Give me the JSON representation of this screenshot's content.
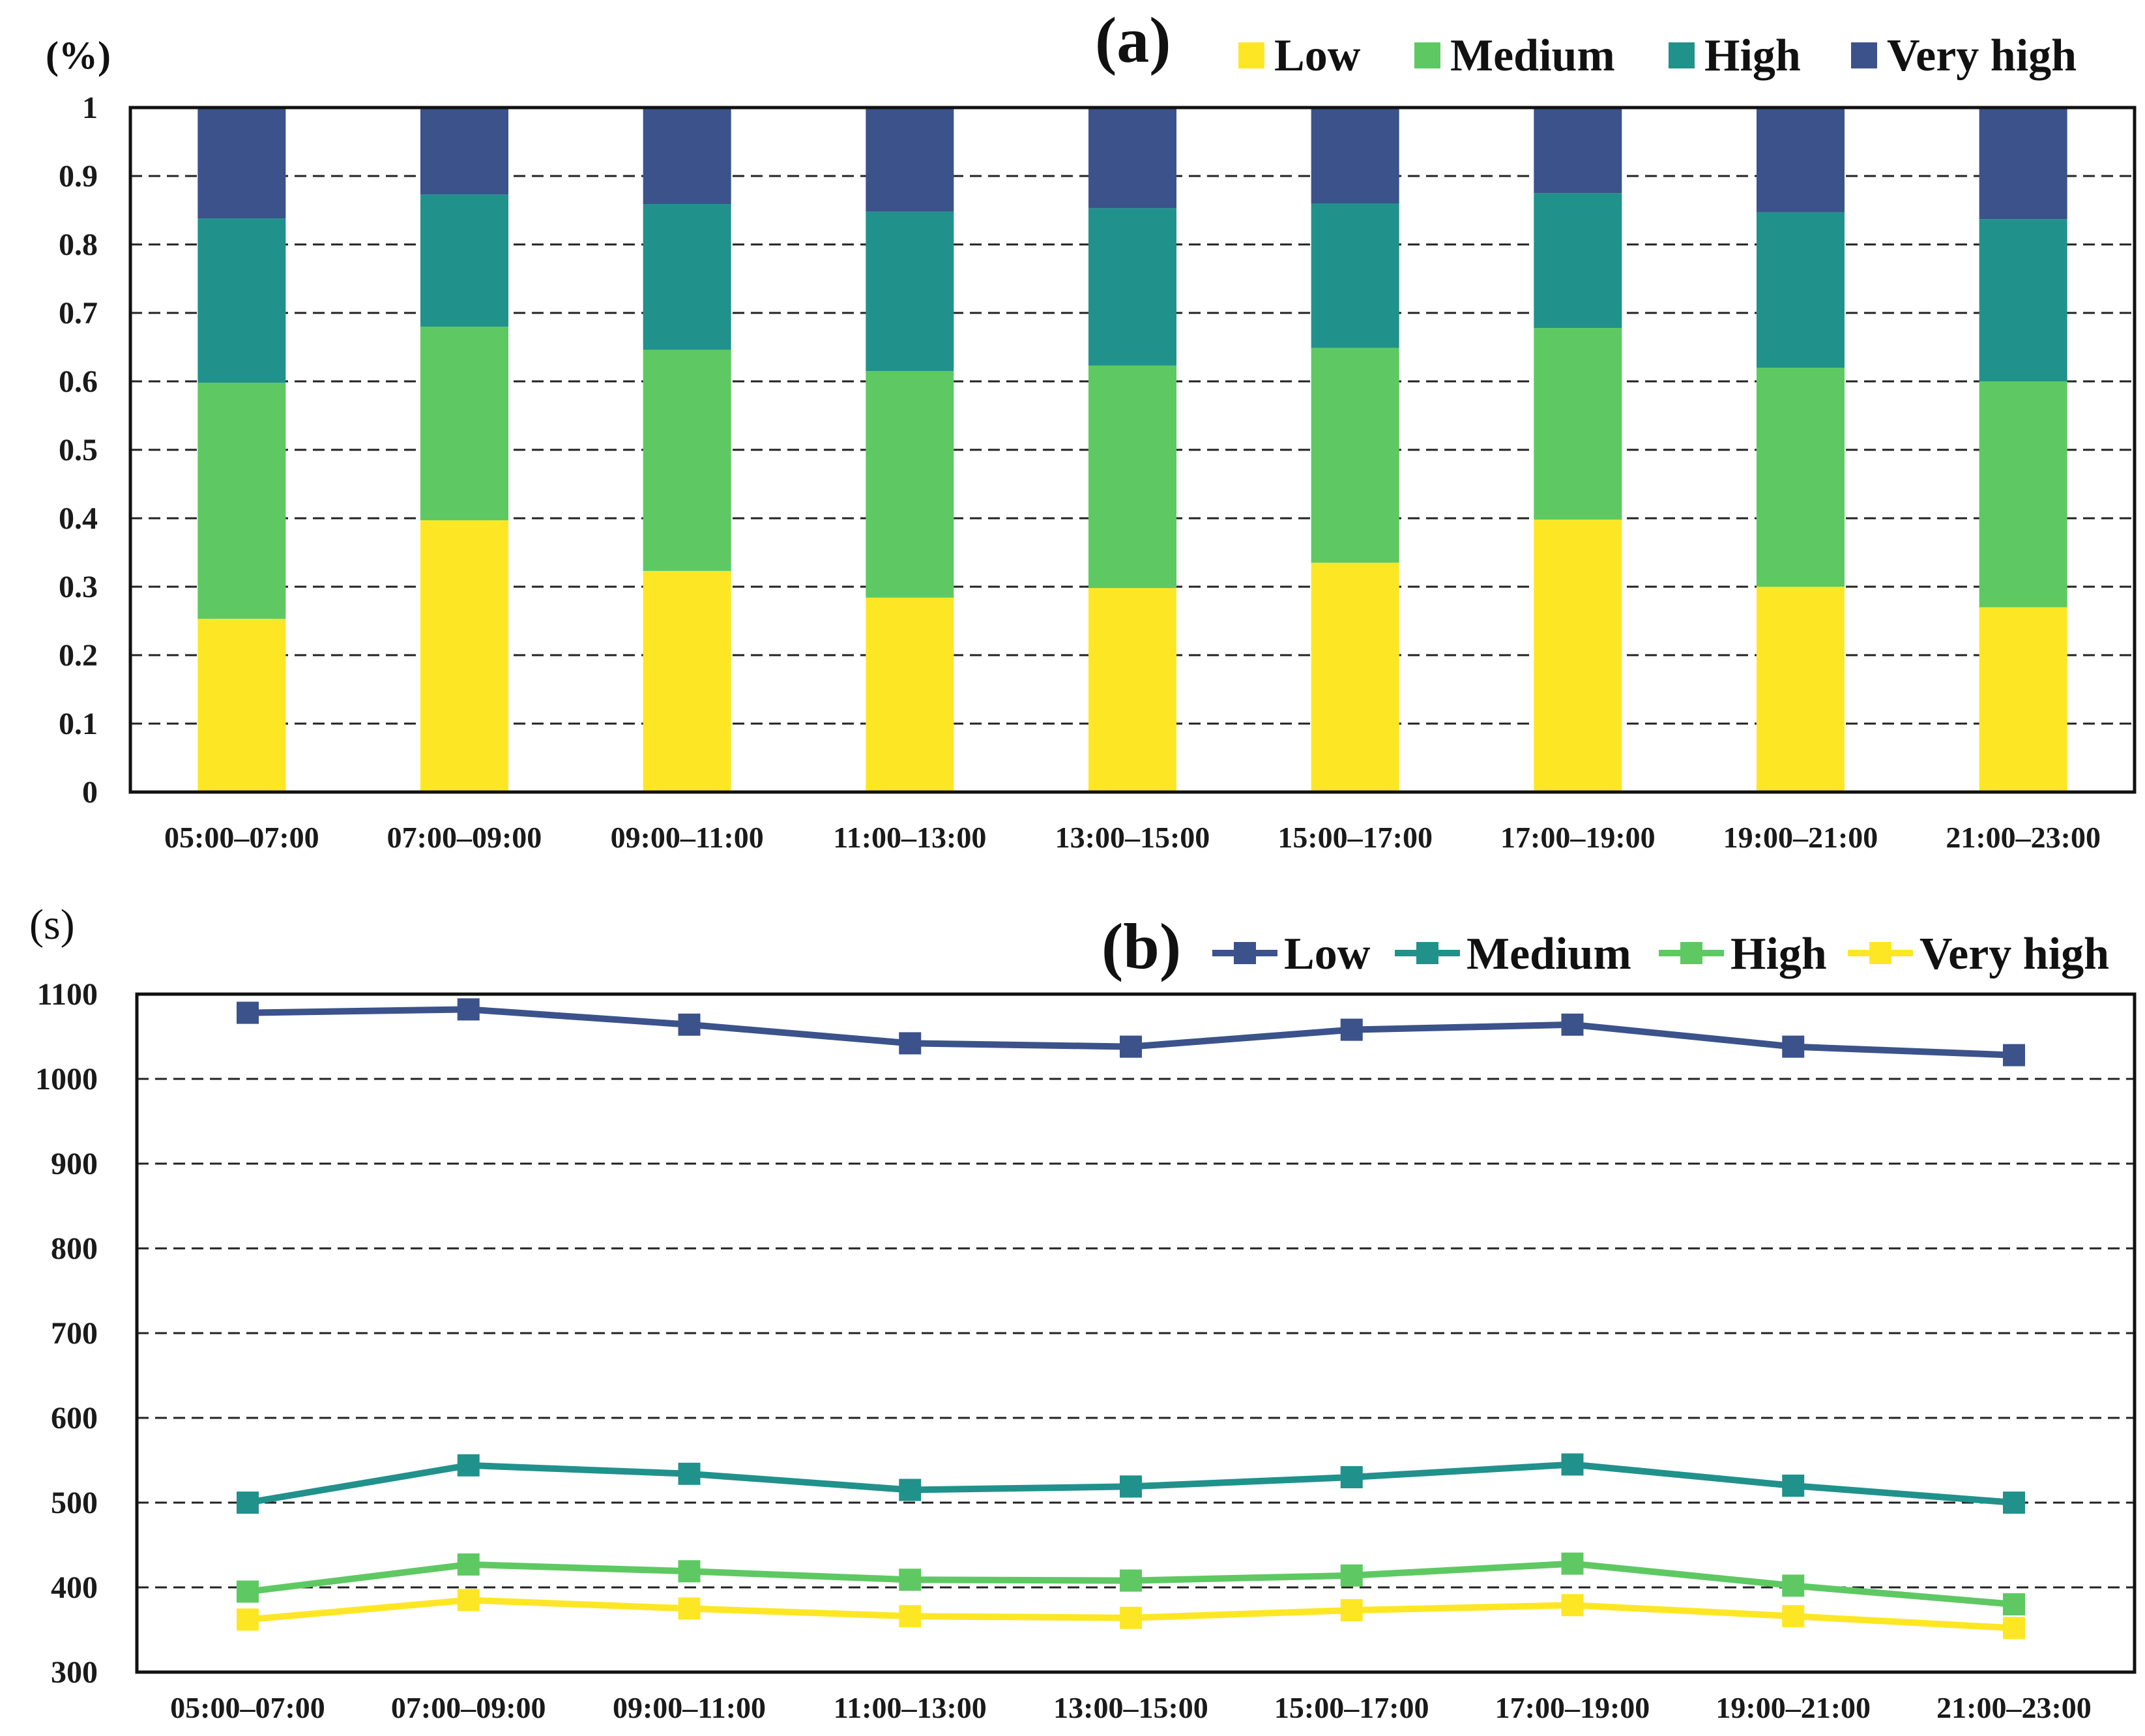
{
  "chart_data": [
    {
      "type": "bar",
      "stacked": true,
      "panel_label": "(a)",
      "ylabel": "(%)",
      "ylim": [
        0,
        1
      ],
      "yticks": [
        "0",
        "0.1",
        "0.2",
        "0.3",
        "0.4",
        "0.5",
        "0.6",
        "0.7",
        "0.8",
        "0.9",
        "1"
      ],
      "grid": true,
      "legend_position": "top-right",
      "categories": [
        "05:00–07:00",
        "07:00–09:00",
        "09:00–11:00",
        "11:00–13:00",
        "13:00–15:00",
        "15:00–17:00",
        "17:00–19:00",
        "19:00–21:00",
        "21:00–23:00"
      ],
      "series": [
        {
          "name": "Low",
          "color": "#FDE725",
          "values": [
            0.253,
            0.397,
            0.323,
            0.284,
            0.298,
            0.335,
            0.398,
            0.3,
            0.27
          ]
        },
        {
          "name": "Medium",
          "color": "#5EC962",
          "values": [
            0.345,
            0.283,
            0.323,
            0.331,
            0.325,
            0.314,
            0.28,
            0.32,
            0.33
          ]
        },
        {
          "name": "High",
          "color": "#21918C",
          "values": [
            0.24,
            0.193,
            0.213,
            0.233,
            0.23,
            0.211,
            0.197,
            0.227,
            0.237
          ]
        },
        {
          "name": "Very high",
          "color": "#3B528B",
          "values": [
            0.162,
            0.127,
            0.141,
            0.152,
            0.147,
            0.14,
            0.125,
            0.153,
            0.163
          ]
        }
      ]
    },
    {
      "type": "line",
      "panel_label": "(b)",
      "ylabel": "(s)",
      "ylim": [
        300,
        1100
      ],
      "yticks": [
        "300",
        "400",
        "500",
        "600",
        "700",
        "800",
        "900",
        "1000",
        "1100"
      ],
      "grid": true,
      "legend_position": "top-right",
      "categories": [
        "05:00–07:00",
        "07:00–09:00",
        "09:00–11:00",
        "11:00–13:00",
        "13:00–15:00",
        "15:00–17:00",
        "17:00–19:00",
        "19:00–21:00",
        "21:00–23:00"
      ],
      "series": [
        {
          "name": "Low",
          "color": "#3B528B",
          "values": [
            1078,
            1082,
            1064,
            1042,
            1038,
            1058,
            1064,
            1038,
            1028
          ]
        },
        {
          "name": "Medium",
          "color": "#21918C",
          "values": [
            500,
            544,
            534,
            515,
            519,
            530,
            545,
            520,
            500
          ]
        },
        {
          "name": "High",
          "color": "#5EC962",
          "values": [
            395,
            427,
            419,
            409,
            408,
            414,
            428,
            402,
            380
          ]
        },
        {
          "name": "Very high",
          "color": "#FDE725",
          "values": [
            362,
            385,
            375,
            366,
            364,
            373,
            379,
            366,
            352
          ]
        }
      ]
    }
  ]
}
